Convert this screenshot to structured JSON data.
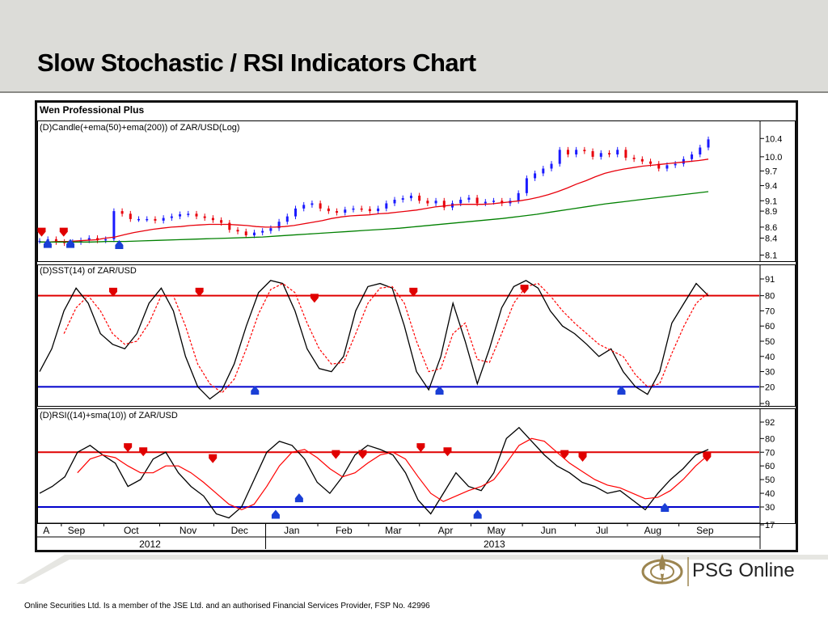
{
  "slide": {
    "title": "Slow Stochastic / RSI Indicators Chart",
    "footer": "Online Securities Ltd. Is a member of the JSE Ltd. and an authorised Financial Services Provider, FSP No. 42996",
    "logo_text": "PSG Online",
    "header_bg": "#dcdcd8"
  },
  "chart_data": [
    {
      "type": "candlestick",
      "product": "Wen Professional Plus",
      "title": "(D)Candle(+ema(50)+ema(200)) of ZAR/USD(Log)",
      "y_scale": "log",
      "ylim": [
        8.05,
        10.55
      ],
      "y_ticks": [
        "10.4",
        "10.0",
        "9.7",
        "9.4",
        "9.1",
        "8.9",
        "8.6",
        "8.4",
        "8.1"
      ],
      "series": [
        {
          "name": "close",
          "color": "#1a1aff",
          "values": [
            8.35,
            8.38,
            8.33,
            8.31,
            8.33,
            8.36,
            8.4,
            8.36,
            8.38,
            8.9,
            8.85,
            8.75,
            8.75,
            8.75,
            8.72,
            8.77,
            8.8,
            8.84,
            8.85,
            8.8,
            8.77,
            8.73,
            8.68,
            8.55,
            8.52,
            8.45,
            8.5,
            8.53,
            8.58,
            8.7,
            8.8,
            8.95,
            9.02,
            9.05,
            8.95,
            8.9,
            8.87,
            8.93,
            8.95,
            8.94,
            8.9,
            8.95,
            9.05,
            9.12,
            9.15,
            9.2,
            9.1,
            9.05,
            9.1,
            8.97,
            9.05,
            9.12,
            9.16,
            9.05,
            9.08,
            9.1,
            9.05,
            9.1,
            9.25,
            9.55,
            9.65,
            9.75,
            9.85,
            10.15,
            10.05,
            10.15,
            10.12,
            10.0,
            10.08,
            10.05,
            10.15,
            9.98,
            9.95,
            9.9,
            9.85,
            9.75,
            9.82,
            9.85,
            9.95,
            10.05,
            10.2,
            10.38
          ]
        },
        {
          "name": "ema(50)",
          "color": "#e8000b",
          "values": [
            8.33,
            8.33,
            8.34,
            8.34,
            8.35,
            8.36,
            8.37,
            8.4,
            8.42,
            8.46,
            8.5,
            8.53,
            8.56,
            8.58,
            8.6,
            8.61,
            8.63,
            8.64,
            8.65,
            8.65,
            8.65,
            8.64,
            8.63,
            8.61,
            8.6,
            8.6,
            8.61,
            8.63,
            8.66,
            8.69,
            8.72,
            8.76,
            8.79,
            8.81,
            8.82,
            8.83,
            8.85,
            8.86,
            8.88,
            8.9,
            8.92,
            8.95,
            8.98,
            9.0,
            9.02,
            9.03,
            9.03,
            9.03,
            9.04,
            9.06,
            9.08,
            9.1,
            9.13,
            9.17,
            9.22,
            9.28,
            9.35,
            9.43,
            9.5,
            9.58,
            9.65,
            9.7,
            9.74,
            9.77,
            9.8,
            9.82,
            9.84,
            9.86,
            9.88,
            9.9,
            9.92,
            9.95
          ]
        },
        {
          "name": "ema(200)",
          "color": "#008000",
          "values": [
            8.33,
            8.33,
            8.33,
            8.33,
            8.34,
            8.34,
            8.35,
            8.36,
            8.37,
            8.38,
            8.39,
            8.4,
            8.41,
            8.42,
            8.44,
            8.46,
            8.48,
            8.5,
            8.52,
            8.54,
            8.56,
            8.58,
            8.61,
            8.64,
            8.67,
            8.7,
            8.73,
            8.76,
            8.8,
            8.84,
            8.89,
            8.94,
            8.99,
            9.04,
            9.08,
            9.12,
            9.16,
            9.2,
            9.24,
            9.28
          ]
        }
      ],
      "signals": [
        {
          "type": "sell",
          "x": 0.003,
          "y": 8.5
        },
        {
          "type": "buy",
          "x": 0.012,
          "y": 8.31
        },
        {
          "type": "sell",
          "x": 0.036,
          "y": 8.5
        },
        {
          "type": "buy",
          "x": 0.046,
          "y": 8.31
        },
        {
          "type": "buy",
          "x": 0.119,
          "y": 8.29
        }
      ]
    },
    {
      "type": "line",
      "title": "(D)SST(14) of ZAR/USD",
      "ylim": [
        9,
        91
      ],
      "y_ticks": [
        "91",
        "80",
        "70",
        "60",
        "50",
        "40",
        "30",
        "20",
        "9"
      ],
      "reference_lines": [
        {
          "value": 80,
          "color": "#e00000"
        },
        {
          "value": 20,
          "color": "#0000cc"
        }
      ],
      "series": [
        {
          "name": "%K",
          "color": "#000000",
          "values": [
            30,
            45,
            70,
            85,
            75,
            55,
            48,
            45,
            55,
            75,
            85,
            70,
            40,
            20,
            12,
            18,
            35,
            60,
            82,
            90,
            88,
            70,
            45,
            32,
            30,
            40,
            70,
            86,
            88,
            85,
            60,
            30,
            18,
            40,
            75,
            50,
            22,
            45,
            72,
            86,
            90,
            85,
            70,
            60,
            55,
            48,
            40,
            45,
            30,
            20,
            15,
            30,
            62,
            75,
            88,
            80
          ]
        },
        {
          "name": "%D",
          "color": "#ff0000",
          "values": [
            null,
            null,
            55,
            72,
            80,
            70,
            55,
            48,
            50,
            62,
            80,
            80,
            60,
            35,
            22,
            16,
            25,
            45,
            68,
            84,
            88,
            82,
            62,
            45,
            35,
            36,
            55,
            75,
            85,
            86,
            75,
            50,
            30,
            32,
            55,
            62,
            38,
            36,
            55,
            75,
            86,
            88,
            80,
            70,
            62,
            55,
            48,
            44,
            40,
            28,
            20,
            22,
            42,
            60,
            75,
            82
          ]
        }
      ],
      "signals": [
        {
          "type": "sell",
          "x": 0.11,
          "y": 82
        },
        {
          "type": "sell",
          "x": 0.239,
          "y": 82
        },
        {
          "type": "buy",
          "x": 0.322,
          "y": 18
        },
        {
          "type": "sell",
          "x": 0.411,
          "y": 78
        },
        {
          "type": "sell",
          "x": 0.559,
          "y": 82
        },
        {
          "type": "buy",
          "x": 0.598,
          "y": 18
        },
        {
          "type": "sell",
          "x": 0.725,
          "y": 84
        },
        {
          "type": "buy",
          "x": 0.87,
          "y": 18
        }
      ]
    },
    {
      "type": "line",
      "title": "(D)RSI((14)+sma(10)) of ZAR/USD",
      "ylim": [
        17,
        92
      ],
      "y_ticks": [
        "92",
        "80",
        "70",
        "60",
        "50",
        "40",
        "30",
        "17"
      ],
      "reference_lines": [
        {
          "value": 70,
          "color": "#e00000"
        },
        {
          "value": 30,
          "color": "#0000cc"
        }
      ],
      "series": [
        {
          "name": "RSI",
          "color": "#000000",
          "values": [
            40,
            45,
            52,
            70,
            75,
            68,
            62,
            45,
            50,
            65,
            70,
            55,
            45,
            38,
            25,
            22,
            30,
            50,
            70,
            78,
            75,
            65,
            48,
            40,
            52,
            68,
            75,
            72,
            68,
            55,
            35,
            25,
            40,
            55,
            45,
            42,
            55,
            80,
            88,
            78,
            68,
            60,
            55,
            48,
            45,
            40,
            42,
            35,
            28,
            40,
            50,
            58,
            68,
            72
          ]
        },
        {
          "name": "sma(10)",
          "color": "#ff0000",
          "values": [
            null,
            null,
            null,
            55,
            65,
            68,
            66,
            60,
            55,
            55,
            60,
            60,
            55,
            48,
            40,
            32,
            28,
            32,
            45,
            60,
            70,
            72,
            66,
            58,
            52,
            55,
            62,
            68,
            70,
            65,
            52,
            40,
            34,
            38,
            42,
            45,
            50,
            62,
            75,
            80,
            78,
            70,
            62,
            56,
            50,
            46,
            44,
            40,
            36,
            37,
            42,
            50,
            60,
            68
          ]
        }
      ],
      "signals": [
        {
          "type": "sell",
          "x": 0.132,
          "y": 73
        },
        {
          "type": "sell",
          "x": 0.155,
          "y": 70
        },
        {
          "type": "sell",
          "x": 0.259,
          "y": 65
        },
        {
          "type": "buy",
          "x": 0.353,
          "y": 25
        },
        {
          "type": "buy",
          "x": 0.388,
          "y": 37
        },
        {
          "type": "sell",
          "x": 0.443,
          "y": 68
        },
        {
          "type": "sell",
          "x": 0.483,
          "y": 68
        },
        {
          "type": "sell",
          "x": 0.57,
          "y": 73
        },
        {
          "type": "sell",
          "x": 0.61,
          "y": 70
        },
        {
          "type": "buy",
          "x": 0.655,
          "y": 25
        },
        {
          "type": "sell",
          "x": 0.785,
          "y": 68
        },
        {
          "type": "sell",
          "x": 0.812,
          "y": 66
        },
        {
          "type": "buy",
          "x": 0.935,
          "y": 30
        },
        {
          "type": "sell",
          "x": 0.998,
          "y": 66
        }
      ]
    }
  ],
  "x_axis": {
    "months": [
      {
        "label": "A",
        "x": 0.01
      },
      {
        "label": "Sep",
        "x": 0.055
      },
      {
        "label": "Oct",
        "x": 0.137
      },
      {
        "label": "Nov",
        "x": 0.222
      },
      {
        "label": "Dec",
        "x": 0.299
      },
      {
        "label": "Jan",
        "x": 0.377
      },
      {
        "label": "Feb",
        "x": 0.455
      },
      {
        "label": "Mar",
        "x": 0.529
      },
      {
        "label": "Apr",
        "x": 0.607
      },
      {
        "label": "May",
        "x": 0.683
      },
      {
        "label": "Jun",
        "x": 0.761
      },
      {
        "label": "Jul",
        "x": 0.841
      },
      {
        "label": "Aug",
        "x": 0.917
      },
      {
        "label": "Sep",
        "x": 0.995
      }
    ],
    "years": [
      {
        "label": "2012",
        "x": 0.165
      },
      {
        "label": "2013",
        "x": 0.68
      }
    ]
  }
}
